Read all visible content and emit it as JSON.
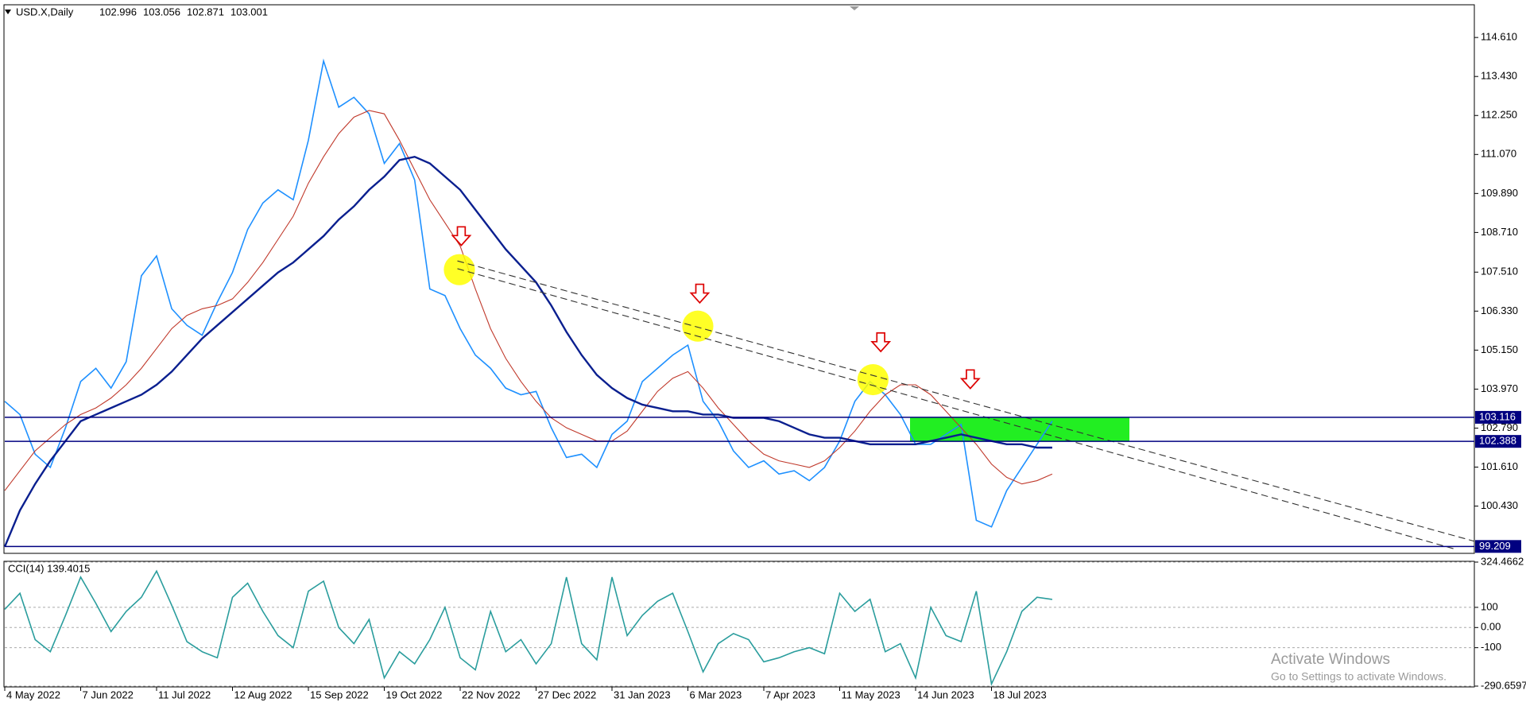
{
  "header": {
    "symbol": "USD.X,Daily",
    "ohlc": [
      102.996,
      103.056,
      102.871,
      103.001
    ]
  },
  "watermark": {
    "title": "Activate Windows",
    "subtitle": "Go to Settings to activate Windows."
  },
  "chart_data": [
    {
      "type": "line",
      "categories": [
        "4 May 2022",
        null,
        null,
        null,
        null,
        "7 Jun 2022",
        null,
        null,
        null,
        null,
        "11 Jul 2022",
        null,
        null,
        null,
        null,
        "12 Aug 2022",
        null,
        null,
        null,
        null,
        "15 Sep 2022",
        null,
        null,
        null,
        null,
        "19 Oct 2022",
        null,
        null,
        null,
        null,
        "22 Nov 2022",
        null,
        null,
        null,
        null,
        "27 Dec 2022",
        null,
        null,
        null,
        null,
        "31 Jan 2023",
        null,
        null,
        null,
        null,
        "6 Mar 2023",
        null,
        null,
        null,
        null,
        "7 Apr 2023",
        null,
        null,
        null,
        null,
        "11 May 2023",
        null,
        null,
        null,
        null,
        "14 Jun 2023",
        null,
        null,
        null,
        null,
        "18 Jul 2023",
        null,
        null,
        null,
        null
      ],
      "series": [
        {
          "color": "#1e90ff",
          "values": [
            103.6,
            103.2,
            102.0,
            101.6,
            102.8,
            104.2,
            104.6,
            104.0,
            104.8,
            107.4,
            108.0,
            106.4,
            105.9,
            105.6,
            106.6,
            107.5,
            108.8,
            109.6,
            110.0,
            109.7,
            111.5,
            113.9,
            112.5,
            112.8,
            112.3,
            110.8,
            111.4,
            110.3,
            107.0,
            106.8,
            105.8,
            105.0,
            104.6,
            104.0,
            103.8,
            103.9,
            102.8,
            101.9,
            102.0,
            101.6,
            102.6,
            103.0,
            104.2,
            104.6,
            105.0,
            105.3,
            103.6,
            103.0,
            102.1,
            101.6,
            101.8,
            101.4,
            101.5,
            101.2,
            101.6,
            102.4,
            103.6,
            104.2,
            103.8,
            103.2,
            102.3,
            102.3,
            102.6,
            102.9,
            100.0,
            99.8,
            100.9,
            101.6,
            102.3,
            103.0
          ]
        },
        {
          "color": "#c0392b",
          "values": [
            100.9,
            101.5,
            102.1,
            102.5,
            102.9,
            103.2,
            103.4,
            103.7,
            104.1,
            104.6,
            105.2,
            105.8,
            106.2,
            106.4,
            106.5,
            106.7,
            107.2,
            107.8,
            108.5,
            109.2,
            110.2,
            111.0,
            111.7,
            112.2,
            112.4,
            112.3,
            111.5,
            110.6,
            109.7,
            109.0,
            108.3,
            107.0,
            105.8,
            104.9,
            104.2,
            103.6,
            103.1,
            102.8,
            102.6,
            102.4,
            102.4,
            102.7,
            103.3,
            103.9,
            104.3,
            104.5,
            104.0,
            103.4,
            102.9,
            102.4,
            102.0,
            101.8,
            101.7,
            101.6,
            101.8,
            102.2,
            102.7,
            103.3,
            103.8,
            104.1,
            104.1,
            103.8,
            103.3,
            102.8,
            102.3,
            101.7,
            101.3,
            101.1,
            101.2,
            101.4
          ]
        },
        {
          "color": "#0a1f8f",
          "values": [
            99.2,
            100.3,
            101.1,
            101.8,
            102.4,
            103.0,
            103.2,
            103.4,
            103.6,
            103.8,
            104.1,
            104.5,
            105.0,
            105.5,
            105.9,
            106.3,
            106.7,
            107.1,
            107.5,
            107.8,
            108.2,
            108.6,
            109.1,
            109.5,
            110.0,
            110.4,
            110.9,
            111.0,
            110.8,
            110.4,
            110.0,
            109.4,
            108.8,
            108.2,
            107.7,
            107.2,
            106.5,
            105.7,
            105.0,
            104.4,
            104.0,
            103.7,
            103.5,
            103.4,
            103.3,
            103.3,
            103.2,
            103.2,
            103.1,
            103.1,
            103.1,
            103.0,
            102.8,
            102.6,
            102.5,
            102.5,
            102.4,
            102.3,
            102.3,
            102.3,
            102.3,
            102.4,
            102.5,
            102.6,
            102.5,
            102.4,
            102.3,
            102.3,
            102.2,
            102.2
          ]
        }
      ],
      "ylim": [
        99.0,
        115.6
      ],
      "yticks": [
        {
          "value": 114.61,
          "label": "114.610"
        },
        {
          "value": 113.43,
          "label": "113.430"
        },
        {
          "value": 112.25,
          "label": "112.250"
        },
        {
          "value": 111.07,
          "label": "111.070"
        },
        {
          "value": 109.89,
          "label": "109.890"
        },
        {
          "value": 108.71,
          "label": "108.710"
        },
        {
          "value": 107.51,
          "label": "107.510"
        },
        {
          "value": 106.33,
          "label": "106.330"
        },
        {
          "value": 105.15,
          "label": "105.150"
        },
        {
          "value": 103.97,
          "label": "103.970"
        },
        {
          "value": 102.79,
          "label": "102.790"
        },
        {
          "value": 101.61,
          "label": "101.610"
        },
        {
          "value": 100.43,
          "label": "100.430"
        }
      ],
      "levels": [
        103.116,
        102.388,
        99.209
      ],
      "level_color": "#000080",
      "zone_color": "#22ee22",
      "grid": false
    },
    {
      "type": "line",
      "title": "CCI(14) 139.4015",
      "series": [
        {
          "color": "#2a9d9d",
          "values": [
            90,
            170,
            -60,
            -120,
            60,
            250,
            120,
            -20,
            80,
            150,
            280,
            110,
            -70,
            -120,
            -150,
            150,
            220,
            80,
            -40,
            -100,
            180,
            230,
            0,
            -80,
            40,
            -250,
            -120,
            -180,
            -60,
            100,
            -150,
            -210,
            80,
            -120,
            -60,
            -180,
            -80,
            250,
            -80,
            -160,
            250,
            -40,
            60,
            130,
            170,
            -20,
            -220,
            -80,
            -30,
            -60,
            -170,
            -150,
            -120,
            -100,
            -130,
            170,
            80,
            140,
            -120,
            -80,
            -250,
            100,
            -40,
            -70,
            180,
            -280,
            -120,
            80,
            150,
            139.4
          ]
        }
      ],
      "ylim": [
        -290.6597,
        324.4662
      ],
      "yticks": [
        324.4662,
        100,
        {
          "value": 0,
          "label": "0.00"
        },
        -100,
        -290.6597
      ],
      "grid": true
    }
  ]
}
